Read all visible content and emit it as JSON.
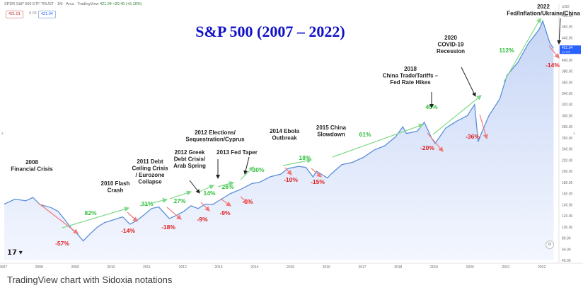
{
  "header": {
    "symbol_line": "SPDR S&P 500 ETF TRUST · 1M · Arca · TradingView",
    "price": "421.04",
    "change": "+20.40 (+5.16%)",
    "bid": "421.01",
    "spread": "0.03",
    "ask": "421.04",
    "settings_icon": "gear-icon",
    "logo_icon": "tradingview-logo-icon",
    "nav_arrow_left": "‹",
    "nav_arrow_right": "›"
  },
  "caption": "TradingView chart with Sidoxia notations",
  "colors": {
    "line": "#5b8fd9",
    "area_top": "#c7d6f6",
    "area_bottom": "#f3f6fe",
    "up": "#2fbf3a",
    "down": "#e02020",
    "arrow_up": "#7fd98a",
    "arrow_down": "#f07a7a",
    "title": "#1010c8",
    "last_price_bg": "#2962ff"
  },
  "chart_data": {
    "type": "area",
    "title": "S&P 500 (2007 – 2022)",
    "x_ticks": [
      "2007",
      "2008",
      "2009",
      "2010",
      "2011",
      "2012",
      "2013",
      "2014",
      "2015",
      "2016",
      "2017",
      "2018",
      "2019",
      "2020",
      "2021",
      "2022"
    ],
    "y_ticks": [
      "USD",
      "480.00",
      "460.00",
      "440.00",
      "420.00",
      "400.00",
      "380.00",
      "360.00",
      "340.00",
      "320.00",
      "300.00",
      "280.00",
      "260.00",
      "240.00",
      "220.00",
      "200.00",
      "180.00",
      "160.00",
      "140.00",
      "120.00",
      "100.00",
      "80.00",
      "60.00",
      "40.00"
    ],
    "ylim": [
      40,
      490
    ],
    "last_price": "421.04",
    "last_price_sub": "3d 12h",
    "series": [
      {
        "x": [
          2007.0,
          2007.3,
          2007.6,
          2007.8,
          2008.0,
          2008.3,
          2008.5,
          2008.7,
          2008.9,
          2009.0,
          2009.2,
          2009.4,
          2009.6,
          2009.8,
          2010.0,
          2010.3,
          2010.5,
          2010.7,
          2010.9,
          2011.1,
          2011.3,
          2011.6,
          2011.8,
          2012.0,
          2012.2,
          2012.4,
          2012.6,
          2012.8,
          2013.0,
          2013.3,
          2013.6,
          2013.9,
          2014.1,
          2014.4,
          2014.7,
          2014.9,
          2015.2,
          2015.4,
          2015.6,
          2015.7,
          2016.0,
          2016.1,
          2016.4,
          2016.7,
          2017.0,
          2017.3,
          2017.6,
          2017.9,
          2018.1,
          2018.2,
          2018.5,
          2018.7,
          2018.9,
          2019.0,
          2019.3,
          2019.6,
          2019.9,
          2020.1,
          2020.2,
          2020.3,
          2020.5,
          2020.8,
          2021.0,
          2021.3,
          2021.6,
          2021.9,
          2022.0,
          2022.1,
          2022.2,
          2022.3
        ],
        "y": [
          141,
          150,
          147,
          153,
          140,
          135,
          128,
          112,
          95,
          90,
          75,
          88,
          100,
          108,
          112,
          118,
          105,
          112,
          122,
          133,
          136,
          115,
          121,
          128,
          138,
          133,
          141,
          140,
          148,
          160,
          168,
          178,
          180,
          190,
          195,
          205,
          209,
          207,
          190,
          200,
          188,
          195,
          212,
          216,
          225,
          238,
          246,
          262,
          280,
          268,
          272,
          288,
          260,
          250,
          278,
          290,
          300,
          320,
          253,
          270,
          300,
          330,
          372,
          395,
          430,
          455,
          470,
          450,
          430,
          421
        ]
      }
    ]
  },
  "annotations": {
    "events": [
      {
        "text": "2008\nFinancial Crisis"
      },
      {
        "text": "2010 Flash\nCrash"
      },
      {
        "text": "2011 Debt\nCeiling Crisis\n/ Eurozone\nCollapse"
      },
      {
        "text": "2012 Greek\nDebt Crisis/\nArab Spring"
      },
      {
        "text": "2012 Elections/\nSequestration/Cyprus"
      },
      {
        "text": "2013 Fed Taper"
      },
      {
        "text": "2014 Ebola\nOutbreak"
      },
      {
        "text": "2015 China\nSlowdown"
      },
      {
        "text": "2018\nChina Trade/Tariffs –\nFed Rate Hikes"
      },
      {
        "text": "2020\nCOVID-19\nRecession"
      },
      {
        "text": "2022\nFed/Inflation/Ukraine/China"
      }
    ],
    "gains": [
      "82%",
      "31%",
      "27%",
      "14%",
      "26%",
      "30%",
      "18%",
      "61%",
      "45%",
      "112%"
    ],
    "drops": [
      "-57%",
      "-14%",
      "-18%",
      "-9%",
      "-9%",
      "-8%",
      "-10%",
      "-15%",
      "-20%",
      "-36%",
      "-14%"
    ]
  }
}
